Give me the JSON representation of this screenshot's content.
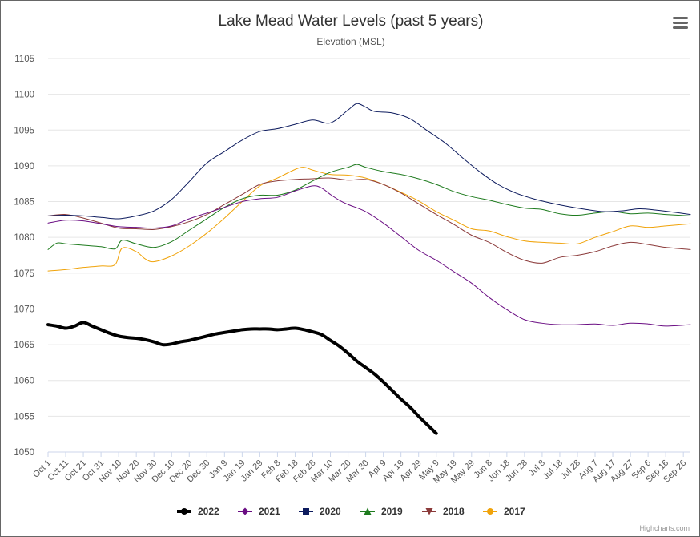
{
  "chart_data": {
    "type": "line",
    "title": "Lake Mead Water Levels (past 5 years)",
    "subtitle": "Elevation (MSL)",
    "xlabel": "",
    "ylabel": "",
    "ylim": [
      1050,
      1105
    ],
    "yticks": [
      1050,
      1055,
      1060,
      1065,
      1070,
      1075,
      1080,
      1085,
      1090,
      1095,
      1100,
      1105
    ],
    "grid": true,
    "legend_position": "bottom",
    "x_categories": [
      "Oct 1",
      "Oct 11",
      "Oct 21",
      "Oct 31",
      "Nov 10",
      "Nov 20",
      "Nov 30",
      "Dec 10",
      "Dec 20",
      "Dec 30",
      "Jan 9",
      "Jan 19",
      "Jan 29",
      "Feb 8",
      "Feb 18",
      "Feb 28",
      "Mar 10",
      "Mar 20",
      "Mar 30",
      "Apr 9",
      "Apr 19",
      "Apr 29",
      "May 9",
      "May 19",
      "May 29",
      "Jun 8",
      "Jun 18",
      "Jun 28",
      "Jul 8",
      "Jul 18",
      "Jul 28",
      "Aug 7",
      "Aug 17",
      "Aug 27",
      "Sep 6",
      "Sep 16",
      "Sep 26"
    ],
    "x_unit": "days since Oct 1",
    "x_max_day": 364,
    "series": [
      {
        "name": "2022",
        "color": "#000000",
        "marker": "circle",
        "width": 4,
        "points": [
          [
            0,
            1067.8
          ],
          [
            5,
            1067.6
          ],
          [
            10,
            1067.3
          ],
          [
            15,
            1067.6
          ],
          [
            20,
            1068.1
          ],
          [
            25,
            1067.6
          ],
          [
            30,
            1067.1
          ],
          [
            35,
            1066.6
          ],
          [
            40,
            1066.2
          ],
          [
            45,
            1066.0
          ],
          [
            50,
            1065.9
          ],
          [
            55,
            1065.7
          ],
          [
            60,
            1065.4
          ],
          [
            65,
            1065.0
          ],
          [
            70,
            1065.1
          ],
          [
            75,
            1065.4
          ],
          [
            80,
            1065.6
          ],
          [
            85,
            1065.9
          ],
          [
            90,
            1066.2
          ],
          [
            95,
            1066.5
          ],
          [
            100,
            1066.7
          ],
          [
            105,
            1066.9
          ],
          [
            110,
            1067.1
          ],
          [
            115,
            1067.2
          ],
          [
            120,
            1067.2
          ],
          [
            125,
            1067.2
          ],
          [
            130,
            1067.1
          ],
          [
            135,
            1067.2
          ],
          [
            140,
            1067.3
          ],
          [
            145,
            1067.1
          ],
          [
            150,
            1066.8
          ],
          [
            155,
            1066.4
          ],
          [
            160,
            1065.6
          ],
          [
            165,
            1064.8
          ],
          [
            170,
            1063.8
          ],
          [
            175,
            1062.7
          ],
          [
            180,
            1061.8
          ],
          [
            185,
            1060.9
          ],
          [
            190,
            1059.8
          ],
          [
            195,
            1058.6
          ],
          [
            200,
            1057.4
          ],
          [
            205,
            1056.3
          ],
          [
            210,
            1055.0
          ],
          [
            215,
            1053.8
          ],
          [
            220,
            1052.6
          ]
        ]
      },
      {
        "name": "2021",
        "color": "#6a0d83",
        "marker": "diamond",
        "width": 1,
        "points": [
          [
            0,
            1082.0
          ],
          [
            10,
            1082.4
          ],
          [
            20,
            1082.3
          ],
          [
            30,
            1081.9
          ],
          [
            40,
            1081.5
          ],
          [
            50,
            1081.4
          ],
          [
            60,
            1081.3
          ],
          [
            70,
            1081.6
          ],
          [
            80,
            1082.6
          ],
          [
            90,
            1083.4
          ],
          [
            100,
            1084.2
          ],
          [
            110,
            1085.0
          ],
          [
            120,
            1085.4
          ],
          [
            130,
            1085.6
          ],
          [
            140,
            1086.5
          ],
          [
            150,
            1087.2
          ],
          [
            155,
            1086.9
          ],
          [
            160,
            1086.0
          ],
          [
            165,
            1085.2
          ],
          [
            170,
            1084.6
          ],
          [
            180,
            1083.6
          ],
          [
            190,
            1082.0
          ],
          [
            200,
            1080.1
          ],
          [
            210,
            1078.2
          ],
          [
            220,
            1076.8
          ],
          [
            230,
            1075.2
          ],
          [
            240,
            1073.6
          ],
          [
            250,
            1071.6
          ],
          [
            260,
            1069.9
          ],
          [
            270,
            1068.5
          ],
          [
            280,
            1068.0
          ],
          [
            290,
            1067.8
          ],
          [
            300,
            1067.8
          ],
          [
            310,
            1067.9
          ],
          [
            320,
            1067.7
          ],
          [
            330,
            1068.0
          ],
          [
            340,
            1067.9
          ],
          [
            350,
            1067.6
          ],
          [
            364,
            1067.8
          ]
        ]
      },
      {
        "name": "2020",
        "color": "#0d1b5e",
        "marker": "square",
        "width": 1,
        "points": [
          [
            0,
            1083.0
          ],
          [
            10,
            1083.1
          ],
          [
            20,
            1083.0
          ],
          [
            30,
            1082.8
          ],
          [
            40,
            1082.6
          ],
          [
            50,
            1083.0
          ],
          [
            60,
            1083.7
          ],
          [
            70,
            1085.3
          ],
          [
            80,
            1087.8
          ],
          [
            90,
            1090.4
          ],
          [
            100,
            1092.0
          ],
          [
            110,
            1093.6
          ],
          [
            120,
            1094.8
          ],
          [
            130,
            1095.2
          ],
          [
            140,
            1095.8
          ],
          [
            150,
            1096.4
          ],
          [
            160,
            1096.0
          ],
          [
            170,
            1097.8
          ],
          [
            175,
            1098.7
          ],
          [
            180,
            1098.2
          ],
          [
            185,
            1097.6
          ],
          [
            195,
            1097.4
          ],
          [
            205,
            1096.6
          ],
          [
            215,
            1094.9
          ],
          [
            225,
            1093.2
          ],
          [
            235,
            1091.1
          ],
          [
            245,
            1089.1
          ],
          [
            255,
            1087.4
          ],
          [
            265,
            1086.2
          ],
          [
            275,
            1085.4
          ],
          [
            285,
            1084.8
          ],
          [
            295,
            1084.3
          ],
          [
            305,
            1083.9
          ],
          [
            315,
            1083.6
          ],
          [
            325,
            1083.7
          ],
          [
            335,
            1084.0
          ],
          [
            345,
            1083.8
          ],
          [
            355,
            1083.5
          ],
          [
            364,
            1083.2
          ]
        ]
      },
      {
        "name": "2019",
        "color": "#1e7b1e",
        "marker": "triangle",
        "width": 1,
        "points": [
          [
            0,
            1078.3
          ],
          [
            5,
            1079.2
          ],
          [
            10,
            1079.1
          ],
          [
            20,
            1078.9
          ],
          [
            30,
            1078.7
          ],
          [
            38,
            1078.4
          ],
          [
            42,
            1079.6
          ],
          [
            50,
            1079.1
          ],
          [
            60,
            1078.6
          ],
          [
            70,
            1079.4
          ],
          [
            80,
            1081.0
          ],
          [
            90,
            1082.6
          ],
          [
            100,
            1084.2
          ],
          [
            110,
            1085.4
          ],
          [
            120,
            1085.9
          ],
          [
            130,
            1085.9
          ],
          [
            140,
            1086.6
          ],
          [
            150,
            1087.9
          ],
          [
            160,
            1089.1
          ],
          [
            170,
            1089.8
          ],
          [
            175,
            1090.2
          ],
          [
            180,
            1089.8
          ],
          [
            190,
            1089.2
          ],
          [
            200,
            1088.8
          ],
          [
            210,
            1088.2
          ],
          [
            220,
            1087.4
          ],
          [
            230,
            1086.4
          ],
          [
            240,
            1085.7
          ],
          [
            250,
            1085.2
          ],
          [
            260,
            1084.6
          ],
          [
            270,
            1084.1
          ],
          [
            280,
            1083.9
          ],
          [
            290,
            1083.3
          ],
          [
            300,
            1083.1
          ],
          [
            310,
            1083.4
          ],
          [
            320,
            1083.6
          ],
          [
            330,
            1083.3
          ],
          [
            340,
            1083.4
          ],
          [
            350,
            1083.2
          ],
          [
            364,
            1083.0
          ]
        ]
      },
      {
        "name": "2018",
        "color": "#8b3a3a",
        "marker": "triangle-down",
        "width": 1,
        "points": [
          [
            0,
            1083.0
          ],
          [
            10,
            1083.2
          ],
          [
            20,
            1082.7
          ],
          [
            30,
            1082.0
          ],
          [
            40,
            1081.3
          ],
          [
            50,
            1081.2
          ],
          [
            60,
            1081.1
          ],
          [
            70,
            1081.5
          ],
          [
            80,
            1082.2
          ],
          [
            90,
            1083.2
          ],
          [
            100,
            1084.6
          ],
          [
            110,
            1086.0
          ],
          [
            120,
            1087.4
          ],
          [
            130,
            1087.9
          ],
          [
            140,
            1088.1
          ],
          [
            150,
            1088.2
          ],
          [
            160,
            1088.3
          ],
          [
            170,
            1088.0
          ],
          [
            180,
            1088.1
          ],
          [
            190,
            1087.4
          ],
          [
            200,
            1086.2
          ],
          [
            210,
            1084.7
          ],
          [
            220,
            1083.2
          ],
          [
            230,
            1081.8
          ],
          [
            240,
            1080.3
          ],
          [
            250,
            1079.3
          ],
          [
            260,
            1077.9
          ],
          [
            270,
            1076.8
          ],
          [
            280,
            1076.4
          ],
          [
            290,
            1077.2
          ],
          [
            300,
            1077.5
          ],
          [
            310,
            1078.0
          ],
          [
            320,
            1078.8
          ],
          [
            330,
            1079.3
          ],
          [
            340,
            1079.0
          ],
          [
            350,
            1078.6
          ],
          [
            364,
            1078.3
          ]
        ]
      },
      {
        "name": "2017",
        "color": "#f0a30a",
        "marker": "circle",
        "width": 1,
        "points": [
          [
            0,
            1075.3
          ],
          [
            10,
            1075.5
          ],
          [
            20,
            1075.8
          ],
          [
            30,
            1076.0
          ],
          [
            38,
            1076.2
          ],
          [
            42,
            1078.5
          ],
          [
            50,
            1078.0
          ],
          [
            55,
            1077.0
          ],
          [
            60,
            1076.6
          ],
          [
            70,
            1077.4
          ],
          [
            80,
            1078.8
          ],
          [
            90,
            1080.6
          ],
          [
            100,
            1082.7
          ],
          [
            110,
            1085.0
          ],
          [
            120,
            1087.2
          ],
          [
            130,
            1088.3
          ],
          [
            140,
            1089.5
          ],
          [
            145,
            1089.8
          ],
          [
            150,
            1089.4
          ],
          [
            160,
            1088.8
          ],
          [
            170,
            1088.7
          ],
          [
            180,
            1088.3
          ],
          [
            190,
            1087.4
          ],
          [
            200,
            1086.3
          ],
          [
            210,
            1085.1
          ],
          [
            220,
            1083.6
          ],
          [
            230,
            1082.4
          ],
          [
            240,
            1081.2
          ],
          [
            250,
            1080.9
          ],
          [
            260,
            1080.1
          ],
          [
            270,
            1079.5
          ],
          [
            280,
            1079.3
          ],
          [
            290,
            1079.2
          ],
          [
            300,
            1079.1
          ],
          [
            310,
            1080.0
          ],
          [
            320,
            1080.8
          ],
          [
            330,
            1081.6
          ],
          [
            340,
            1081.4
          ],
          [
            350,
            1081.6
          ],
          [
            364,
            1081.9
          ]
        ]
      }
    ]
  },
  "credits": "Highcharts.com",
  "menu": {
    "icon": "hamburger-menu-icon"
  }
}
